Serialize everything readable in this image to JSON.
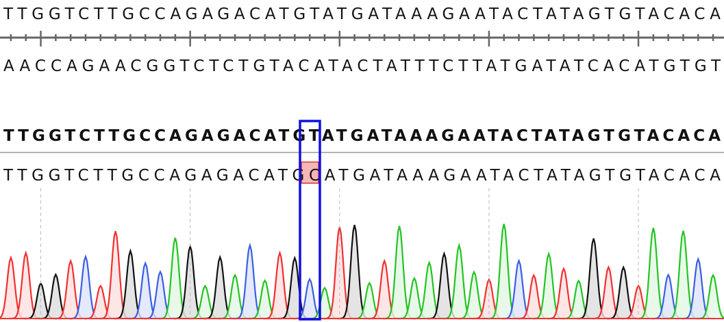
{
  "reference": {
    "forward": "TTGGTCTTGCCAGAGACATGTATGATAAAGAATACTATAGTGTACACA",
    "reverse": "AACCAGAACGGTCTCTGTACATACTATTTCTTATGATATCACATGTGT"
  },
  "alignment": {
    "reference": "TTGGTCTTGCCAGAGACATGTATGATAAAGAATACTATAGTGTACACA",
    "read": "TTGGTCTTGCCAGAGACATGCATGATAAAGAATACTATAGTGTACACA"
  }
}
